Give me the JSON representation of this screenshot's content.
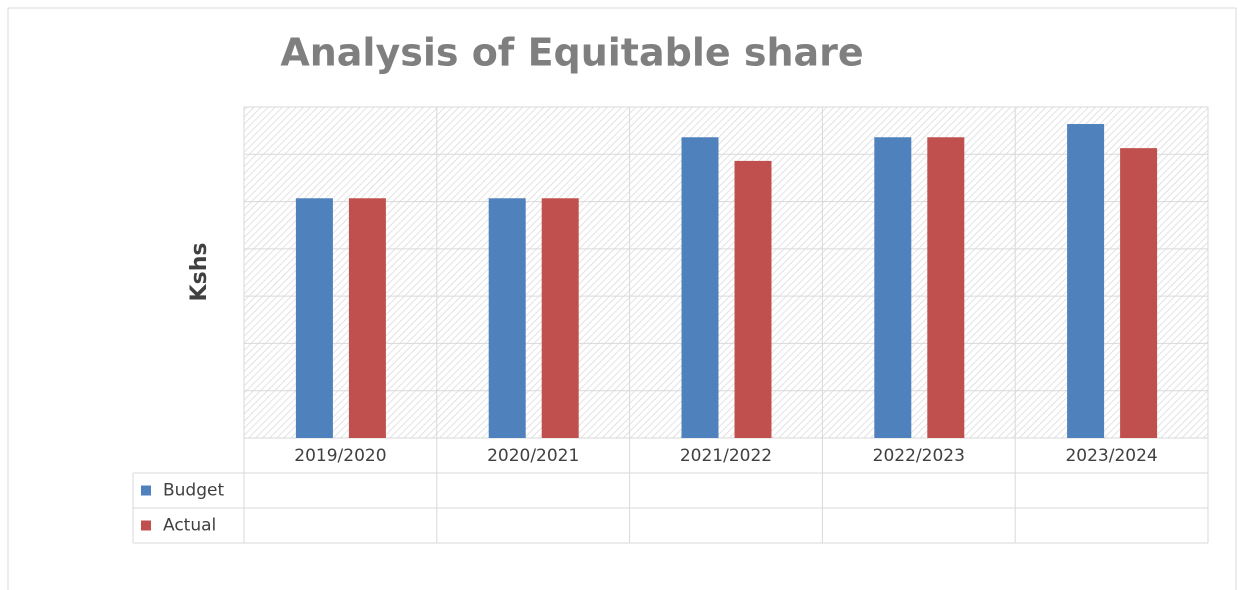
{
  "chart_data": {
    "type": "bar",
    "title": "Analysis of Equitable share",
    "y_label": "Kshs",
    "categories": [
      "2019/2020",
      "2020/2021",
      "2021/2022",
      "2022/2023",
      "2023/2024"
    ],
    "series": [
      {
        "name": "Budget",
        "color": "#4f81bd",
        "values": [
          5.07,
          5.07,
          6.36,
          6.36,
          6.64
        ]
      },
      {
        "name": "Actual",
        "color": "#c0504d",
        "values": [
          5.07,
          5.07,
          5.86,
          6.36,
          6.13
        ]
      }
    ],
    "ylim": [
      0,
      7
    ],
    "yticks": [
      0,
      1,
      2,
      3,
      4,
      5,
      6,
      7
    ],
    "grid": true
  }
}
